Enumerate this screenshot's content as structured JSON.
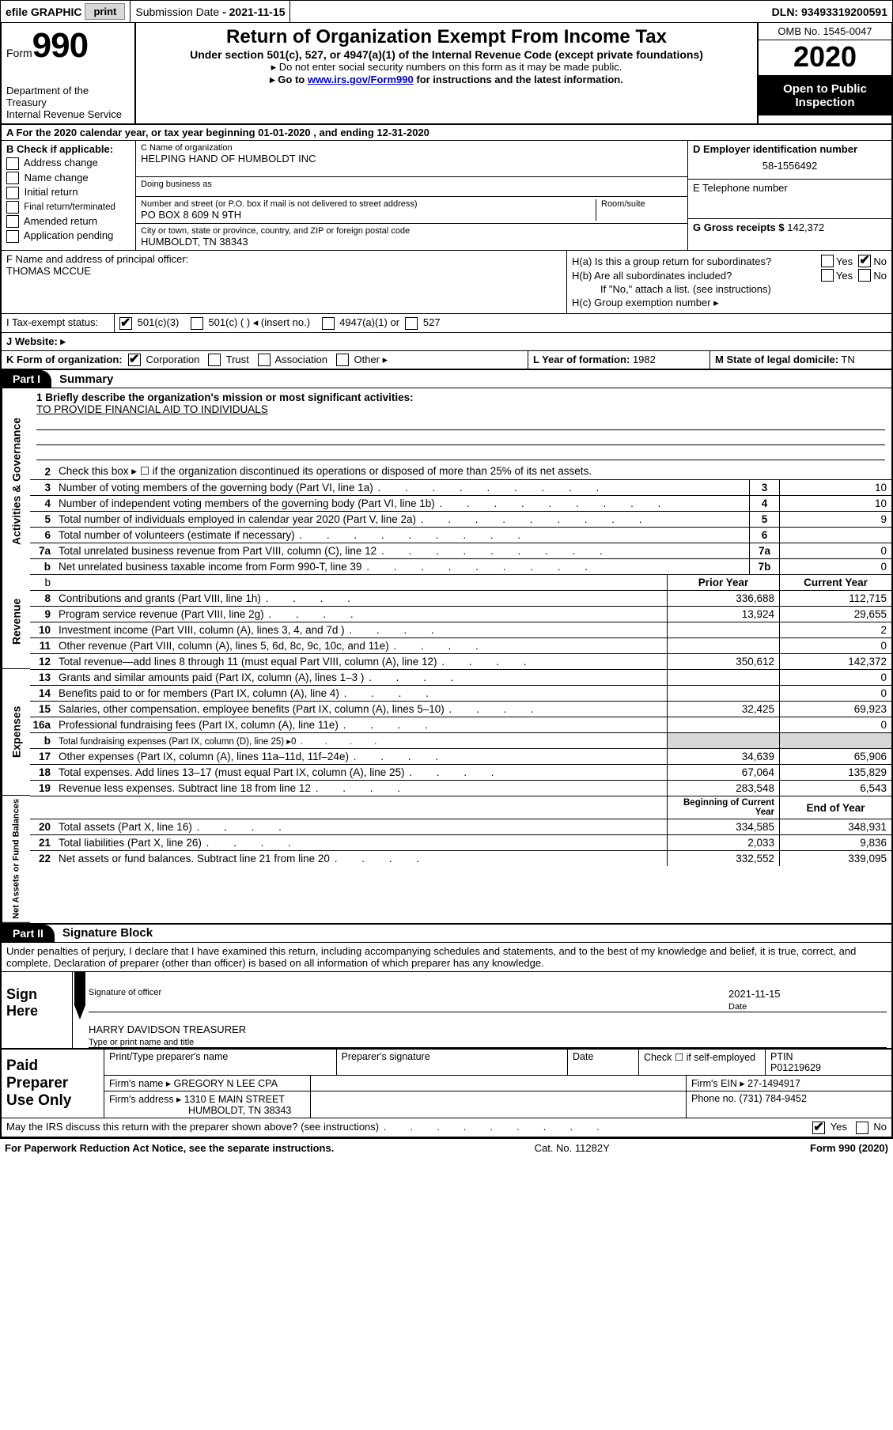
{
  "topbar": {
    "efile_label": "efile GRAPHIC",
    "print_btn": "print",
    "submission_label": "Submission Date",
    "submission_value": "2021-11-15",
    "dln_label": "DLN:",
    "dln_value": "93493319200591"
  },
  "header": {
    "form_word": "Form",
    "form_num": "990",
    "dept": "Department of the Treasury\nInternal Revenue Service",
    "title": "Return of Organization Exempt From Income Tax",
    "subtitle": "Under section 501(c), 527, or 4947(a)(1) of the Internal Revenue Code (except private foundations)",
    "note1": "▸ Do not enter social security numbers on this form as it may be made public.",
    "note2_pre": "▸ Go to ",
    "note2_link": "www.irs.gov/Form990",
    "note2_post": " for instructions and the latest information.",
    "omb": "OMB No. 1545-0047",
    "year": "2020",
    "inspection": "Open to Public Inspection"
  },
  "row_a": "A For the 2020 calendar year, or tax year beginning 01-01-2020   , and ending 12-31-2020",
  "col_b": {
    "label": "B Check if applicable:",
    "opts": [
      "Address change",
      "Name change",
      "Initial return",
      "Final return/terminated",
      "Amended return",
      "Application pending"
    ]
  },
  "col_c": {
    "name_label": "C Name of organization",
    "name": "HELPING HAND OF HUMBOLDT INC",
    "dba_label": "Doing business as",
    "dba": "",
    "street_label": "Number and street (or P.O. box if mail is not delivered to street address)",
    "room_label": "Room/suite",
    "street": "PO BOX 8 609 N 9TH",
    "city_label": "City or town, state or province, country, and ZIP or foreign postal code",
    "city": "HUMBOLDT, TN  38343"
  },
  "col_d": {
    "ein_label": "D Employer identification number",
    "ein": "58-1556492",
    "phone_label": "E Telephone number",
    "phone": "",
    "gross_label": "G Gross receipts $",
    "gross": "142,372"
  },
  "col_f": {
    "label": "F  Name and address of principal officer:",
    "name": "THOMAS MCCUE"
  },
  "col_h": {
    "a_label": "H(a)  Is this a group return for subordinates?",
    "b_label": "H(b)  Are all subordinates included?",
    "b_note": "If \"No,\" attach a list. (see instructions)",
    "c_label": "H(c)  Group exemption number ▸",
    "yes": "Yes",
    "no": "No"
  },
  "row_i": {
    "label": "I  Tax-exempt status:",
    "o1": "501(c)(3)",
    "o2": "501(c) (  ) ◂ (insert no.)",
    "o3": "4947(a)(1) or",
    "o4": "527"
  },
  "row_j": "J  Website: ▸",
  "row_k": {
    "k_label": "K Form of organization:",
    "k_opts": [
      "Corporation",
      "Trust",
      "Association",
      "Other ▸"
    ],
    "l_label": "L Year of formation:",
    "l_val": "1982",
    "m_label": "M State of legal domicile:",
    "m_val": "TN"
  },
  "part1": {
    "tab": "Part I",
    "title": "Summary",
    "q1_label": "1  Briefly describe the organization's mission or most significant activities:",
    "q1_text": "TO PROVIDE FINANCIAL AID TO INDIVIDUALS",
    "q2": "Check this box ▸ ☐  if the organization discontinued its operations or disposed of more than 25% of its net assets.",
    "rows_single": [
      {
        "n": "3",
        "d": "Number of voting members of the governing body (Part VI, line 1a)",
        "ln": "3",
        "v": "10"
      },
      {
        "n": "4",
        "d": "Number of independent voting members of the governing body (Part VI, line 1b)",
        "ln": "4",
        "v": "10"
      },
      {
        "n": "5",
        "d": "Total number of individuals employed in calendar year 2020 (Part V, line 2a)",
        "ln": "5",
        "v": "9"
      },
      {
        "n": "6",
        "d": "Total number of volunteers (estimate if necessary)",
        "ln": "6",
        "v": ""
      },
      {
        "n": "7a",
        "d": "Total unrelated business revenue from Part VIII, column (C), line 12",
        "ln": "7a",
        "v": "0"
      },
      {
        "n": "b",
        "d": "Net unrelated business taxable income from Form 990-T, line 39",
        "ln": "7b",
        "v": "0"
      }
    ],
    "col_hdr_prior": "Prior Year",
    "col_hdr_current": "Current Year",
    "revenue": [
      {
        "n": "8",
        "d": "Contributions and grants (Part VIII, line 1h)",
        "p": "336,688",
        "c": "112,715"
      },
      {
        "n": "9",
        "d": "Program service revenue (Part VIII, line 2g)",
        "p": "13,924",
        "c": "29,655"
      },
      {
        "n": "10",
        "d": "Investment income (Part VIII, column (A), lines 3, 4, and 7d )",
        "p": "",
        "c": "2"
      },
      {
        "n": "11",
        "d": "Other revenue (Part VIII, column (A), lines 5, 6d, 8c, 9c, 10c, and 11e)",
        "p": "",
        "c": "0"
      },
      {
        "n": "12",
        "d": "Total revenue—add lines 8 through 11 (must equal Part VIII, column (A), line 12)",
        "p": "350,612",
        "c": "142,372"
      }
    ],
    "expenses": [
      {
        "n": "13",
        "d": "Grants and similar amounts paid (Part IX, column (A), lines 1–3 )",
        "p": "",
        "c": "0"
      },
      {
        "n": "14",
        "d": "Benefits paid to or for members (Part IX, column (A), line 4)",
        "p": "",
        "c": "0"
      },
      {
        "n": "15",
        "d": "Salaries, other compensation, employee benefits (Part IX, column (A), lines 5–10)",
        "p": "32,425",
        "c": "69,923"
      },
      {
        "n": "16a",
        "d": "Professional fundraising fees (Part IX, column (A), line 11e)",
        "p": "",
        "c": "0"
      },
      {
        "n": "b",
        "d": "Total fundraising expenses (Part IX, column (D), line 25) ▸0",
        "p": "__shade__",
        "c": "__shade__",
        "small": true
      },
      {
        "n": "17",
        "d": "Other expenses (Part IX, column (A), lines 11a–11d, 11f–24e)",
        "p": "34,639",
        "c": "65,906"
      },
      {
        "n": "18",
        "d": "Total expenses. Add lines 13–17 (must equal Part IX, column (A), line 25)",
        "p": "67,064",
        "c": "135,829"
      },
      {
        "n": "19",
        "d": "Revenue less expenses. Subtract line 18 from line 12",
        "p": "283,548",
        "c": "6,543"
      }
    ],
    "col_hdr_beg": "Beginning of Current Year",
    "col_hdr_end": "End of Year",
    "netassets": [
      {
        "n": "20",
        "d": "Total assets (Part X, line 16)",
        "p": "334,585",
        "c": "348,931"
      },
      {
        "n": "21",
        "d": "Total liabilities (Part X, line 26)",
        "p": "2,033",
        "c": "9,836"
      },
      {
        "n": "22",
        "d": "Net assets or fund balances. Subtract line 21 from line 20",
        "p": "332,552",
        "c": "339,095"
      }
    ],
    "vlabels": {
      "gov": "Activities & Governance",
      "rev": "Revenue",
      "exp": "Expenses",
      "net": "Net Assets or Fund Balances"
    }
  },
  "part2": {
    "tab": "Part II",
    "title": "Signature Block",
    "declare": "Under penalties of perjury, I declare that I have examined this return, including accompanying schedules and statements, and to the best of my knowledge and belief, it is true, correct, and complete. Declaration of preparer (other than officer) is based on all information of which preparer has any knowledge.",
    "sign_here": "Sign Here",
    "sig_of_officer": "Signature of officer",
    "date_label": "Date",
    "date_val": "2021-11-15",
    "officer_name": "HARRY DAVIDSON TREASURER",
    "type_label": "Type or print name and title",
    "paid_prep": "Paid Preparer Use Only",
    "r1": {
      "c1": "Print/Type preparer's name",
      "c2": "Preparer's signature",
      "c3": "Date",
      "c4a": "Check ☐ if self-employed",
      "c5a": "PTIN",
      "c5b": "P01219629"
    },
    "r2": {
      "firm_label": "Firm's name    ▸",
      "firm": "GREGORY N LEE CPA",
      "ein_label": "Firm's EIN ▸",
      "ein": "27-1494917"
    },
    "r3": {
      "addr_label": "Firm's address ▸",
      "addr1": "1310 E MAIN STREET",
      "addr2": "HUMBOLDT, TN  38343",
      "phone_label": "Phone no.",
      "phone": "(731) 784-9452"
    },
    "discuss": "May the IRS discuss this return with the preparer shown above? (see instructions)",
    "yes": "Yes",
    "no": "No"
  },
  "footer": {
    "paperwork": "For Paperwork Reduction Act Notice, see the separate instructions.",
    "cat": "Cat. No. 11282Y",
    "form": "Form 990 (2020)"
  }
}
